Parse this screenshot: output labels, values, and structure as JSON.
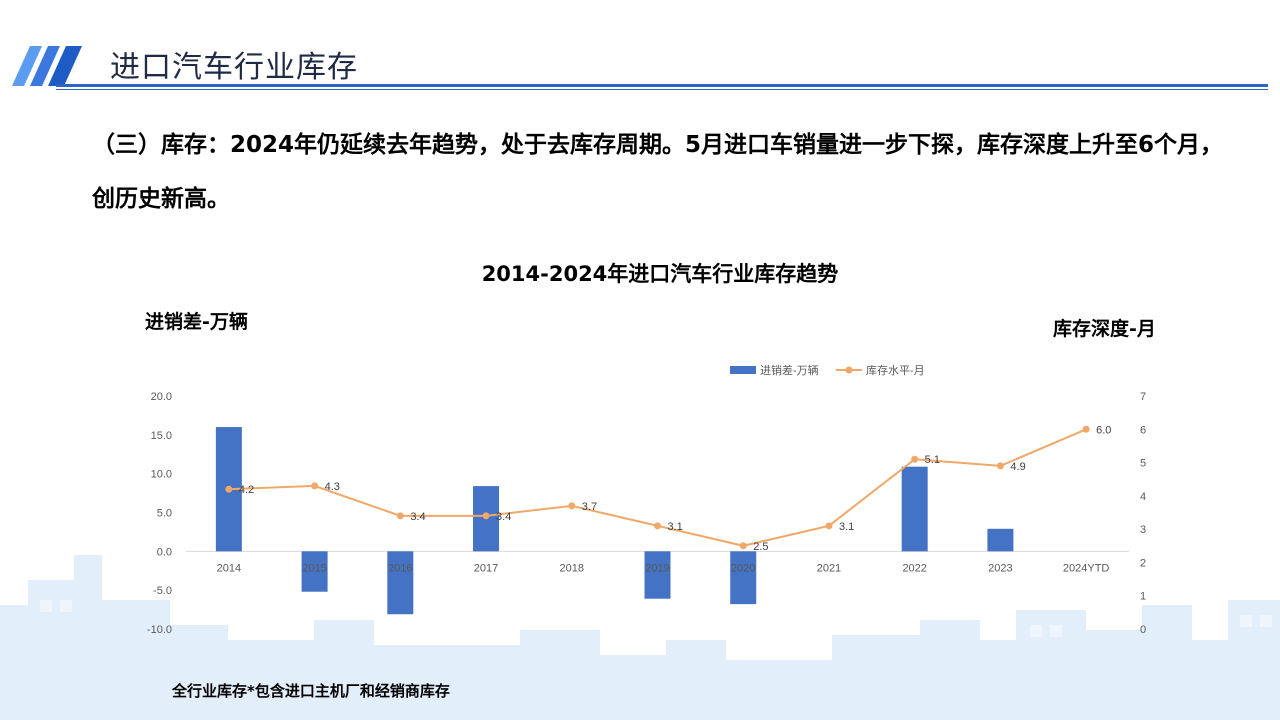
{
  "header": {
    "title": "进口汽车行业库存"
  },
  "summary": "（三）库存：2024年仍延续去年趋势，处于去库存周期。5月进口车销量进一步下探，库存深度上升至6个月，创历史新高。",
  "footnote": "全行业库存*包含进口主机厂和经销商库存",
  "colors": {
    "accent": "#2f63c8",
    "bar": "#4472c4",
    "line": "#f0a868",
    "skyline": "#e3eefb"
  },
  "chart_data": {
    "type": "bar",
    "title": "2014-2024年进口汽车行业库存趋势",
    "y_left_title": "进销差-万辆",
    "y_right_title": "库存深度-月",
    "legend_position": "top-center",
    "grid": false,
    "categories": [
      "2014",
      "2015",
      "2016",
      "2017",
      "2018",
      "2019",
      "2020",
      "2021",
      "2022",
      "2023",
      "2024YTD"
    ],
    "left_axis": {
      "ylim": [
        -10,
        20
      ],
      "ticks": [
        "-10.0",
        "-5.0",
        "0.0",
        "5.0",
        "10.0",
        "15.0",
        "20.0"
      ]
    },
    "right_axis": {
      "ylim": [
        0,
        7
      ],
      "ticks": [
        "0",
        "1",
        "2",
        "3",
        "4",
        "5",
        "6",
        "7"
      ]
    },
    "series": [
      {
        "name": "进销差-万辆",
        "type": "bar",
        "axis": "left",
        "values": [
          16.0,
          -5.2,
          -8.1,
          8.4,
          0.0,
          -6.1,
          -6.8,
          0.0,
          10.9,
          2.9,
          0.0
        ]
      },
      {
        "name": "库存水平-月",
        "type": "line",
        "axis": "right",
        "values": [
          4.2,
          4.3,
          3.4,
          3.4,
          3.7,
          3.1,
          2.5,
          3.1,
          5.1,
          4.9,
          6.0
        ],
        "labels": [
          "4.2",
          "4.3",
          "3.4",
          "3.4",
          "3.7",
          "3.1",
          "2.5",
          "3.1",
          "5.1",
          "4.9",
          "6.0"
        ]
      }
    ]
  }
}
